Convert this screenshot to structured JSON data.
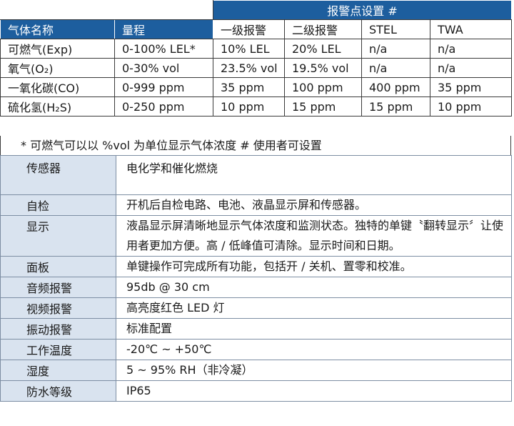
{
  "gas_table": {
    "group_header": "报警点设置 #",
    "headers": [
      "气体名称",
      "量程",
      "一级报警",
      "二级报警",
      "STEL",
      "TWA"
    ],
    "rows": [
      [
        "可燃气(Exp)",
        "0-100% LEL*",
        "10% LEL",
        "20% LEL",
        "n/a",
        "n/a"
      ],
      [
        "氧气(O₂)",
        "0-30% vol",
        "23.5% vol",
        "19.5% vol",
        "n/a",
        "n/a"
      ],
      [
        "一氧化碳(CO)",
        "0-999 ppm",
        "35 ppm",
        "100 ppm",
        "400 ppm",
        "35 ppm"
      ],
      [
        "硫化氢(H₂S)",
        "0-250 ppm",
        "10 ppm",
        "15 ppm",
        "15 ppm",
        "10 ppm"
      ]
    ],
    "note": "* 可燃气可以以 %vol 为单位显示气体浓度     # 使用者可设置"
  },
  "spec_table": {
    "rows": [
      {
        "label": "传感器",
        "value": "电化学和催化燃烧"
      },
      {
        "label": "自检",
        "value": "开机后自检电路、电池、液晶显示屏和传感器。"
      },
      {
        "label": "显示",
        "value": "液晶显示屏清晰地显示气体浓度和监测状态。独特的单键〝翻转显示〞让使用者更加方便。高 / 低峰值可清除。显示时间和日期。"
      },
      {
        "label": "面板",
        "value": "单键操作可完成所有功能，包括开 / 关机、置零和校准。"
      },
      {
        "label": "音频报警",
        "value": "95db @ 30 cm"
      },
      {
        "label": "视频报警",
        "value": "高亮度红色 LED 灯"
      },
      {
        "label": "振动报警",
        "value": "标准配置"
      },
      {
        "label": "工作温度",
        "value": "-20℃ ~ +50℃"
      },
      {
        "label": "湿度",
        "value": "5 ~ 95% RH（非冷凝）"
      },
      {
        "label": "防水等级",
        "value": "IP65"
      }
    ]
  },
  "colors": {
    "header_blue": "#1d5e9e",
    "label_bg": "#d9e3ef"
  }
}
